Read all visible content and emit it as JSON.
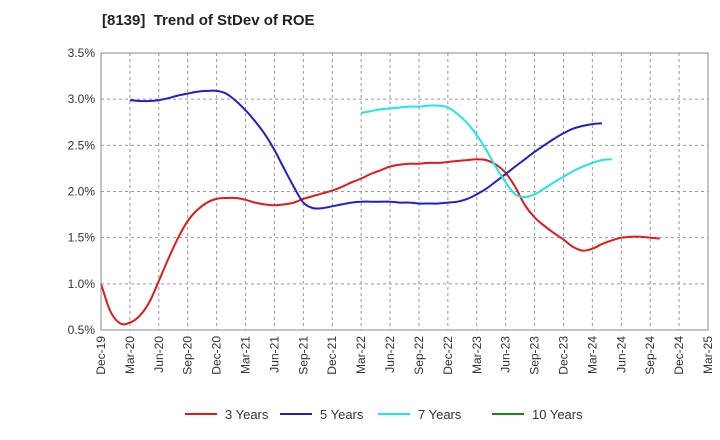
{
  "chart_data": {
    "type": "line",
    "title": "[8139]  Trend of StDev of ROE",
    "xlabel": "",
    "ylabel": "",
    "ylim": [
      0.5,
      3.5
    ],
    "yticks": [
      "0.5%",
      "1.0%",
      "1.5%",
      "2.0%",
      "2.5%",
      "3.0%",
      "3.5%"
    ],
    "yunit": "%",
    "xticks": [
      "Dec-19",
      "Mar-20",
      "Jun-20",
      "Sep-20",
      "Dec-20",
      "Mar-21",
      "Jun-21",
      "Sep-21",
      "Dec-21",
      "Mar-22",
      "Jun-22",
      "Sep-22",
      "Dec-22",
      "Mar-23",
      "Jun-23",
      "Sep-23",
      "Dec-23",
      "Mar-24",
      "Jun-24",
      "Sep-24",
      "Dec-24",
      "Mar-25"
    ],
    "grid": true,
    "legend_position": "bottom",
    "series": [
      {
        "name": "3 Years",
        "color": "#e31a1c",
        "points": [
          [
            0,
            1.0
          ],
          [
            0.33,
            0.7
          ],
          [
            0.67,
            0.57
          ],
          [
            1,
            0.58
          ],
          [
            1.33,
            0.65
          ],
          [
            1.67,
            0.8
          ],
          [
            2,
            1.03
          ],
          [
            2.33,
            1.27
          ],
          [
            2.67,
            1.5
          ],
          [
            3,
            1.68
          ],
          [
            3.33,
            1.8
          ],
          [
            3.67,
            1.88
          ],
          [
            4,
            1.92
          ],
          [
            4.33,
            1.93
          ],
          [
            4.67,
            1.93
          ],
          [
            5,
            1.91
          ],
          [
            5.33,
            1.88
          ],
          [
            5.67,
            1.86
          ],
          [
            6,
            1.85
          ],
          [
            6.33,
            1.86
          ],
          [
            6.67,
            1.88
          ],
          [
            7,
            1.92
          ],
          [
            7.33,
            1.95
          ],
          [
            7.67,
            1.98
          ],
          [
            8,
            2.01
          ],
          [
            8.33,
            2.05
          ],
          [
            8.67,
            2.1
          ],
          [
            9,
            2.14
          ],
          [
            9.33,
            2.19
          ],
          [
            9.67,
            2.23
          ],
          [
            10,
            2.27
          ],
          [
            10.33,
            2.29
          ],
          [
            10.67,
            2.3
          ],
          [
            11,
            2.3
          ],
          [
            11.33,
            2.31
          ],
          [
            11.67,
            2.31
          ],
          [
            12,
            2.32
          ],
          [
            12.33,
            2.33
          ],
          [
            12.67,
            2.34
          ],
          [
            13,
            2.35
          ],
          [
            13.33,
            2.34
          ],
          [
            13.67,
            2.29
          ],
          [
            14,
            2.2
          ],
          [
            14.33,
            2.05
          ],
          [
            14.67,
            1.85
          ],
          [
            15,
            1.72
          ],
          [
            15.33,
            1.63
          ],
          [
            15.67,
            1.55
          ],
          [
            16,
            1.48
          ],
          [
            16.33,
            1.4
          ],
          [
            16.67,
            1.36
          ],
          [
            17,
            1.38
          ],
          [
            17.33,
            1.43
          ],
          [
            17.67,
            1.47
          ],
          [
            18,
            1.5
          ],
          [
            18.33,
            1.51
          ],
          [
            18.67,
            1.51
          ],
          [
            19,
            1.5
          ],
          [
            19.33,
            1.49
          ]
        ]
      },
      {
        "name": "5 Years",
        "color": "#1f1fcc",
        "points": [
          [
            1,
            2.99
          ],
          [
            1.33,
            2.98
          ],
          [
            1.67,
            2.98
          ],
          [
            2,
            2.99
          ],
          [
            2.33,
            3.01
          ],
          [
            2.67,
            3.04
          ],
          [
            3,
            3.06
          ],
          [
            3.33,
            3.08
          ],
          [
            3.67,
            3.09
          ],
          [
            4,
            3.09
          ],
          [
            4.33,
            3.06
          ],
          [
            4.67,
            2.98
          ],
          [
            5,
            2.88
          ],
          [
            5.33,
            2.76
          ],
          [
            5.67,
            2.62
          ],
          [
            6,
            2.45
          ],
          [
            6.33,
            2.25
          ],
          [
            6.67,
            2.05
          ],
          [
            7,
            1.88
          ],
          [
            7.33,
            1.82
          ],
          [
            7.67,
            1.82
          ],
          [
            8,
            1.84
          ],
          [
            8.33,
            1.86
          ],
          [
            8.67,
            1.88
          ],
          [
            9,
            1.89
          ],
          [
            9.33,
            1.89
          ],
          [
            9.67,
            1.89
          ],
          [
            10,
            1.89
          ],
          [
            10.33,
            1.88
          ],
          [
            10.67,
            1.88
          ],
          [
            11,
            1.87
          ],
          [
            11.33,
            1.87
          ],
          [
            11.67,
            1.87
          ],
          [
            12,
            1.88
          ],
          [
            12.33,
            1.89
          ],
          [
            12.67,
            1.92
          ],
          [
            13,
            1.97
          ],
          [
            13.33,
            2.03
          ],
          [
            13.67,
            2.11
          ],
          [
            14,
            2.19
          ],
          [
            14.33,
            2.27
          ],
          [
            14.67,
            2.35
          ],
          [
            15,
            2.43
          ],
          [
            15.33,
            2.5
          ],
          [
            15.67,
            2.57
          ],
          [
            16,
            2.63
          ],
          [
            16.33,
            2.68
          ],
          [
            16.67,
            2.71
          ],
          [
            17,
            2.73
          ],
          [
            17.33,
            2.74
          ]
        ]
      },
      {
        "name": "7 Years",
        "color": "#22e5e5",
        "points": [
          [
            9,
            2.85
          ],
          [
            9.33,
            2.87
          ],
          [
            9.67,
            2.89
          ],
          [
            10,
            2.9
          ],
          [
            10.33,
            2.91
          ],
          [
            10.67,
            2.92
          ],
          [
            11,
            2.92
          ],
          [
            11.33,
            2.93
          ],
          [
            11.67,
            2.93
          ],
          [
            12,
            2.91
          ],
          [
            12.33,
            2.84
          ],
          [
            12.67,
            2.74
          ],
          [
            13,
            2.61
          ],
          [
            13.33,
            2.45
          ],
          [
            13.67,
            2.26
          ],
          [
            14,
            2.1
          ],
          [
            14.33,
            1.97
          ],
          [
            14.67,
            1.94
          ],
          [
            15,
            1.97
          ],
          [
            15.33,
            2.03
          ],
          [
            15.67,
            2.1
          ],
          [
            16,
            2.16
          ],
          [
            16.33,
            2.22
          ],
          [
            16.67,
            2.27
          ],
          [
            17,
            2.31
          ],
          [
            17.33,
            2.34
          ],
          [
            17.67,
            2.35
          ]
        ]
      },
      {
        "name": "10 Years",
        "color": "#1a8a1a",
        "points": []
      }
    ]
  }
}
